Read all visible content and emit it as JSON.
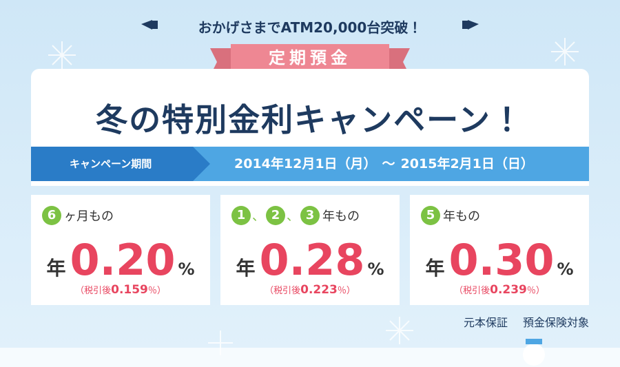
{
  "header": {
    "announcement": "おかげさまでATM20,000台突破！",
    "ribbon": "定期預金",
    "title": "冬の特別金利キャンペーン！"
  },
  "period": {
    "label": "キャンペーン期間",
    "start": "2014年12月1日（月）",
    "separator": "～",
    "end": "2015年2月1日（日）"
  },
  "cards": [
    {
      "badges": [
        "6"
      ],
      "badge_separator": null,
      "term": "ヶ月もの",
      "rate_prefix": "年",
      "rate": "0.20",
      "rate_unit": "%",
      "after_tax_prefix": "（税引後",
      "after_tax_rate": "0.159",
      "after_tax_suffix": "％）"
    },
    {
      "badges": [
        "1",
        "2",
        "3"
      ],
      "badge_separator": "、",
      "term": "年もの",
      "rate_prefix": "年",
      "rate": "0.28",
      "rate_unit": "%",
      "after_tax_prefix": "（税引後",
      "after_tax_rate": "0.223",
      "after_tax_suffix": "％）"
    },
    {
      "badges": [
        "5"
      ],
      "badge_separator": null,
      "term": "年もの",
      "rate_prefix": "年",
      "rate": "0.30",
      "rate_unit": "%",
      "after_tax_prefix": "（税引後",
      "after_tax_rate": "0.239",
      "after_tax_suffix": "％）"
    }
  ],
  "footer": {
    "notes": [
      "元本保証",
      "預金保険対象"
    ]
  }
}
